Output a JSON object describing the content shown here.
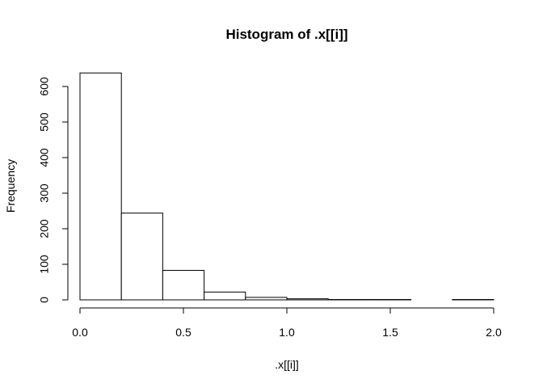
{
  "chart_data": {
    "type": "bar",
    "title": "Histogram of .x[[i]]",
    "xlabel": ".x[[i]]",
    "ylabel": "Frequency",
    "bins": [
      {
        "x0": 0.0,
        "x1": 0.2,
        "count": 638
      },
      {
        "x0": 0.2,
        "x1": 0.4,
        "count": 244
      },
      {
        "x0": 0.4,
        "x1": 0.6,
        "count": 83
      },
      {
        "x0": 0.6,
        "x1": 0.8,
        "count": 22
      },
      {
        "x0": 0.8,
        "x1": 1.0,
        "count": 7
      },
      {
        "x0": 1.0,
        "x1": 1.2,
        "count": 3
      },
      {
        "x0": 1.2,
        "x1": 1.4,
        "count": 1
      },
      {
        "x0": 1.4,
        "x1": 1.6,
        "count": 1
      },
      {
        "x0": 1.6,
        "x1": 1.8,
        "count": 0
      },
      {
        "x0": 1.8,
        "x1": 2.0,
        "count": 1
      }
    ],
    "xlim": [
      0.0,
      2.0
    ],
    "ylim": [
      0,
      640
    ],
    "x_ticks": [
      "0.0",
      "0.5",
      "1.0",
      "1.5",
      "2.0"
    ],
    "y_ticks": [
      "0",
      "100",
      "200",
      "300",
      "400",
      "500",
      "600"
    ],
    "grid": false,
    "legend": "none",
    "colors": {
      "bar_fill": "#ffffff",
      "bar_stroke": "#000000",
      "axis": "#000000"
    }
  }
}
